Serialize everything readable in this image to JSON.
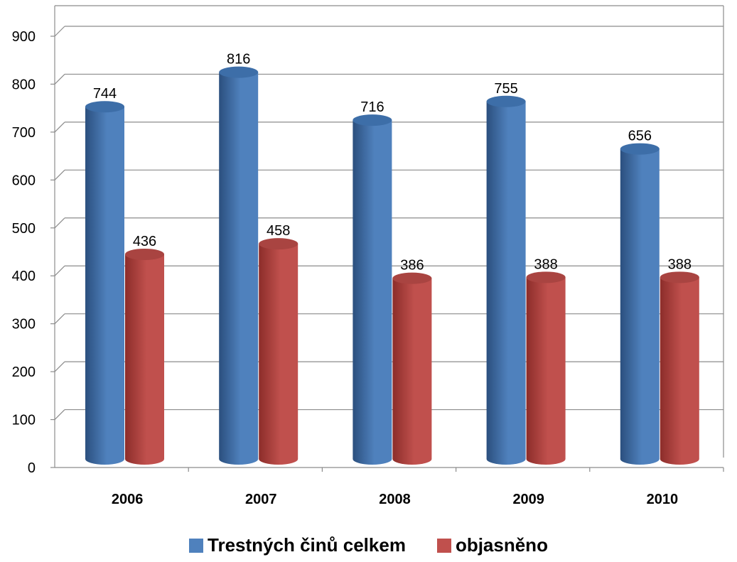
{
  "chart_data": {
    "type": "bar",
    "categories": [
      "2006",
      "2007",
      "2008",
      "2009",
      "2010"
    ],
    "series": [
      {
        "name": "Trestných činů celkem",
        "values": [
          744,
          816,
          716,
          755,
          656
        ],
        "color": "#4f81bd"
      },
      {
        "name": "objasněno",
        "values": [
          436,
          458,
          386,
          388,
          388
        ],
        "color": "#c0504d"
      }
    ],
    "ylim": [
      0,
      900
    ],
    "y_ticks": [
      "0",
      "100",
      "200",
      "300",
      "400",
      "500",
      "600",
      "700",
      "800",
      "900"
    ],
    "grid": true,
    "legend_position": "bottom",
    "bar_style": "3d-cylinder"
  }
}
